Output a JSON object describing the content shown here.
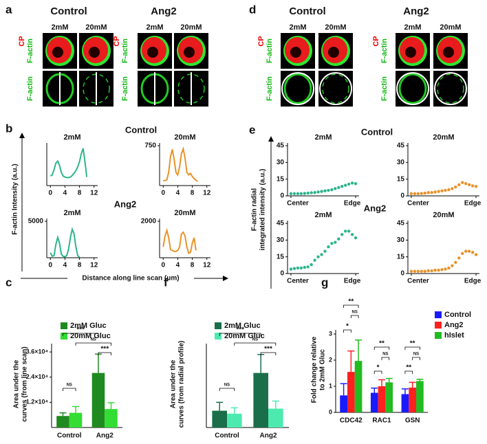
{
  "figure": {
    "panel_labels": [
      "a",
      "b",
      "c",
      "d",
      "e",
      "f",
      "g"
    ],
    "a": {
      "groups": [
        "Control",
        "Ang2"
      ],
      "conditions": [
        "2mM",
        "20mM",
        "2mM",
        "20mM"
      ],
      "row1_labels": [
        "CP",
        "F-actin"
      ],
      "row2_label": "F-actin"
    },
    "d": {
      "groups": [
        "Control",
        "Ang2"
      ],
      "conditions": [
        "2mM",
        "20mM",
        "2mM",
        "20mM"
      ],
      "row1_labels": [
        "CP",
        "F-actin"
      ],
      "row2_label": "F-actin"
    },
    "b": {
      "groups": [
        "Control",
        "Ang2"
      ],
      "ylabel": "F-actin Intensity (a.u.)",
      "xlabel": "Distance along line scan (μm)"
    },
    "e": {
      "groups": [
        "Control",
        "Ang2"
      ],
      "ylabel": [
        "F-actin radial",
        "integrated intensity (a.u.)"
      ]
    }
  },
  "chart_data": [
    {
      "type": "line",
      "title": "2mM",
      "color": "#2bb58a",
      "xlim": [
        -1,
        13
      ],
      "xticks": [
        0,
        4,
        8,
        12
      ],
      "ylim": [
        0,
        750
      ],
      "x": [
        0,
        0.5,
        1,
        1.5,
        2,
        2.5,
        3,
        3.5,
        4,
        4.5,
        5,
        5.5,
        6,
        6.5,
        7,
        7.5,
        8,
        8.5,
        9,
        9.5,
        10
      ],
      "values": [
        180,
        200,
        300,
        420,
        460,
        380,
        250,
        180,
        160,
        150,
        150,
        160,
        190,
        230,
        280,
        350,
        450,
        600,
        700,
        450,
        160
      ]
    },
    {
      "type": "line",
      "title": "20mM",
      "color": "#e8922a",
      "xlim": [
        -1,
        13
      ],
      "xticks": [
        0,
        4,
        8,
        12
      ],
      "ylim": [
        0,
        750
      ],
      "yticks": [
        750
      ],
      "x": [
        0,
        0.5,
        1,
        1.5,
        2,
        2.5,
        3,
        3.5,
        4,
        4.5,
        5,
        5.5,
        6,
        6.5,
        7,
        7.5,
        8,
        8.5,
        9,
        9.5
      ],
      "values": [
        90,
        95,
        110,
        250,
        550,
        680,
        500,
        250,
        200,
        350,
        600,
        690,
        520,
        250,
        200,
        230,
        170,
        130,
        100,
        80
      ]
    },
    {
      "type": "line",
      "title": "2mM",
      "color": "#2bb58a",
      "xlim": [
        -1,
        13
      ],
      "xticks": [
        0,
        4,
        8,
        12
      ],
      "ylim": [
        0,
        5000
      ],
      "yticks": [
        5000
      ],
      "x": [
        0,
        0.5,
        1,
        1.5,
        2,
        2.5,
        3,
        3.5,
        4,
        4.5,
        5,
        5.5,
        6,
        6.5,
        7,
        7.5,
        8
      ],
      "values": [
        700,
        200,
        300,
        1800,
        2800,
        2000,
        500,
        200,
        150,
        300,
        1200,
        2800,
        3900,
        3300,
        1500,
        300,
        50
      ]
    },
    {
      "type": "line",
      "title": "20mM",
      "color": "#e8922a",
      "xlim": [
        -1,
        13
      ],
      "xticks": [
        0,
        4,
        8,
        12
      ],
      "ylim": [
        0,
        2000
      ],
      "yticks": [
        2000
      ],
      "x": [
        0,
        0.5,
        1,
        1.5,
        2,
        2.5,
        3,
        3.5,
        4,
        4.5,
        5,
        5.5,
        6,
        6.5,
        7,
        7.5,
        8,
        8.5,
        9
      ],
      "values": [
        600,
        1200,
        1500,
        1100,
        450,
        400,
        350,
        350,
        400,
        600,
        1300,
        1400,
        1200,
        600,
        250,
        300,
        800,
        1100,
        400
      ]
    },
    {
      "type": "scatter",
      "title": "2mM",
      "color": "#2bb58a",
      "xlim": [
        0,
        21
      ],
      "xticks": [
        {
          "value": 1,
          "label": "Center"
        },
        {
          "value": 20,
          "label": "Edge"
        }
      ],
      "ylim": [
        0,
        45
      ],
      "yticks": [
        0,
        15,
        30,
        45
      ],
      "x": [
        1,
        2,
        3,
        4,
        5,
        6,
        7,
        8,
        9,
        10,
        11,
        12,
        13,
        14,
        15,
        16,
        17,
        18,
        19,
        20
      ],
      "values": [
        2,
        2,
        2,
        2,
        2.2,
        2.5,
        2.8,
        3,
        3.5,
        4,
        4.5,
        5,
        5.5,
        6.5,
        7.5,
        8.5,
        9.5,
        10.5,
        11.5,
        11
      ]
    },
    {
      "type": "scatter",
      "title": "20mM",
      "color": "#e8922a",
      "xlim": [
        0,
        21
      ],
      "xticks": [
        {
          "value": 1,
          "label": "Center"
        },
        {
          "value": 20,
          "label": "Edge"
        }
      ],
      "ylim": [
        0,
        45
      ],
      "yticks": [
        0,
        15,
        30,
        45
      ],
      "x": [
        1,
        2,
        3,
        4,
        5,
        6,
        7,
        8,
        9,
        10,
        11,
        12,
        13,
        14,
        15,
        16,
        17,
        18,
        19,
        20
      ],
      "values": [
        2,
        2,
        2,
        2.2,
        2.5,
        3,
        3,
        3.5,
        4,
        4.5,
        5,
        5.5,
        6.5,
        8,
        10,
        12,
        11,
        10,
        9,
        8.5
      ]
    },
    {
      "type": "scatter",
      "title": "2mM",
      "color": "#2bb58a",
      "xlim": [
        0,
        21
      ],
      "xticks": [
        {
          "value": 1,
          "label": "Center"
        },
        {
          "value": 20,
          "label": "Edge"
        }
      ],
      "ylim": [
        0,
        45
      ],
      "yticks": [
        0,
        15,
        30,
        45
      ],
      "x": [
        1,
        2,
        3,
        4,
        5,
        6,
        7,
        8,
        9,
        10,
        11,
        12,
        13,
        14,
        15,
        16,
        17,
        18,
        19,
        20
      ],
      "values": [
        4,
        4.5,
        5,
        5,
        5.5,
        6,
        8,
        12,
        15,
        17,
        20,
        24,
        27,
        28,
        31,
        35,
        38,
        38,
        35,
        32
      ]
    },
    {
      "type": "scatter",
      "title": "20mM",
      "color": "#e8922a",
      "xlim": [
        0,
        21
      ],
      "xticks": [
        {
          "value": 1,
          "label": "Center"
        },
        {
          "value": 20,
          "label": "Edge"
        }
      ],
      "ylim": [
        0,
        45
      ],
      "yticks": [
        0,
        15,
        30,
        45
      ],
      "x": [
        1,
        2,
        3,
        4,
        5,
        6,
        7,
        8,
        9,
        10,
        11,
        12,
        13,
        14,
        15,
        16,
        17,
        18,
        19,
        20
      ],
      "values": [
        2,
        2,
        2,
        2,
        2,
        2.5,
        2.5,
        3,
        3,
        3.5,
        4,
        5,
        7,
        10,
        14,
        18,
        20,
        20,
        19,
        17
      ]
    },
    {
      "type": "bar",
      "ylabel": [
        "Area under the",
        "curves (from line scan)"
      ],
      "categories": [
        "Control",
        "Ang2"
      ],
      "ylim": [
        0,
        38000
      ],
      "yticks": [
        {
          "value": 12000,
          "label": "1.2×10⁴"
        },
        {
          "value": 24000,
          "label": "2.4×10⁴"
        },
        {
          "value": 36000,
          "label": "3.6×10⁴"
        }
      ],
      "series": [
        {
          "name": "2mM Gluc",
          "color": "#1f8a1f",
          "values": [
            5500,
            26000
          ],
          "errors": [
            1500,
            9000
          ]
        },
        {
          "name": "20mM Gluc",
          "color": "#33dd33",
          "values": [
            7000,
            8800
          ],
          "errors": [
            3000,
            3000
          ]
        }
      ],
      "annotations": [
        "***",
        "NS",
        "***",
        "NS"
      ]
    },
    {
      "type": "bar",
      "ylabel": [
        "Area under the",
        "curves (from radial profile)"
      ],
      "categories": [
        "Control",
        "Ang2"
      ],
      "ylim": [
        0,
        950
      ],
      "series": [
        {
          "name": "2mM Gluc",
          "color": "#1a6e4a",
          "values": [
            200,
            650
          ],
          "errors": [
            100,
            220
          ]
        },
        {
          "name": "20mM Gluc",
          "color": "#4deab0",
          "values": [
            165,
            225
          ],
          "errors": [
            70,
            90
          ]
        }
      ],
      "annotations": [
        "***",
        "NS",
        "***",
        "NS"
      ]
    },
    {
      "type": "bar",
      "ylabel": [
        "Fold change relative",
        "to 2mM Gluc"
      ],
      "categories": [
        "CDC42",
        "RAC1",
        "GSN"
      ],
      "ylim": [
        0,
        3
      ],
      "yticks": [
        0,
        1,
        2,
        3
      ],
      "series": [
        {
          "name": "Control",
          "color": "#1a1aff",
          "values": [
            0.65,
            0.75,
            0.7
          ],
          "errors": [
            0.45,
            0.18,
            0.2
          ]
        },
        {
          "name": "Ang2",
          "color": "#ff2020",
          "values": [
            1.55,
            1.0,
            0.95
          ],
          "errors": [
            0.8,
            0.25,
            0.2
          ]
        },
        {
          "name": "hIslet",
          "color": "#22bb22",
          "values": [
            1.97,
            1.15,
            1.2
          ],
          "errors": [
            0.8,
            0.15,
            0.07
          ]
        }
      ],
      "annotations": [
        "**",
        "NS",
        "*",
        "**",
        "NS",
        "*",
        "**",
        "NS",
        "**"
      ]
    }
  ]
}
